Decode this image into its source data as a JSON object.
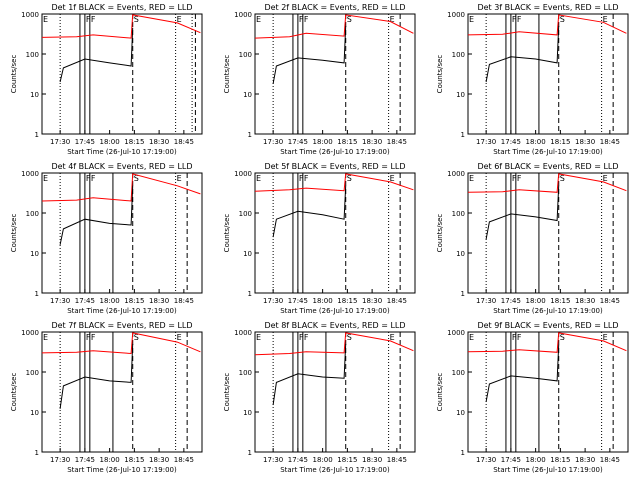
{
  "chart_data": {
    "type": "line",
    "layout": "3x3 grid",
    "ylabel": "Counts/sec",
    "xlabel": "Start Time (26-Jul-10 17:19:00)",
    "x_ticks": [
      "17:30",
      "17:45",
      "18:00",
      "18:15",
      "18:30",
      "18:45"
    ],
    "y_ticks": [
      "1",
      "10",
      "100",
      "1000"
    ],
    "y_scale": "log",
    "ylim": [
      1,
      1000
    ],
    "xlim": [
      "17:19",
      "18:56"
    ],
    "series_colors": {
      "events": "#000000",
      "lld": "#ff0000"
    },
    "marker_letters": {
      "E": "E",
      "F": "F",
      "S": "S"
    },
    "panels": [
      {
        "title": "Det 1f BLACK = Events, RED = LLD",
        "vlines_dotted": [
          "17:30",
          "18:40",
          "18:50"
        ],
        "vlines_solid": [
          "17:42",
          "17:45",
          "17:48"
        ],
        "vlines_dashed": [
          "18:14",
          "18:52"
        ],
        "labels": [
          {
            "t": "E",
            "at": "17:19"
          },
          {
            "t": "F",
            "at": "17:45"
          },
          {
            "t": "F",
            "at": "17:48"
          },
          {
            "t": "S",
            "at": "18:14"
          },
          {
            "t": "E",
            "at": "18:40"
          }
        ],
        "events": [
          {
            "x": "17:30",
            "y": 20
          },
          {
            "x": "17:32",
            "y": 45
          },
          {
            "x": "17:45",
            "y": 75
          },
          {
            "x": "18:00",
            "y": 60
          },
          {
            "x": "18:13",
            "y": 50
          },
          {
            "x": "18:14",
            "y": 450
          }
        ],
        "lld": [
          {
            "x": "17:19",
            "y": 260
          },
          {
            "x": "17:40",
            "y": 270
          },
          {
            "x": "17:50",
            "y": 300
          },
          {
            "x": "18:13",
            "y": 250
          },
          {
            "x": "18:14",
            "y": 950
          },
          {
            "x": "18:41",
            "y": 600
          },
          {
            "x": "18:55",
            "y": 340
          }
        ]
      },
      {
        "title": "Det 2f BLACK = Events, RED = LLD",
        "vlines_dotted": [
          "17:30",
          "18:40"
        ],
        "vlines_solid": [
          "17:42",
          "17:45",
          "17:48"
        ],
        "vlines_dashed": [
          "18:14",
          "18:47"
        ],
        "labels": [
          {
            "t": "E",
            "at": "17:19"
          },
          {
            "t": "F",
            "at": "17:45"
          },
          {
            "t": "F",
            "at": "17:48"
          },
          {
            "t": "S",
            "at": "18:14"
          },
          {
            "t": "E",
            "at": "18:40"
          }
        ],
        "events": [
          {
            "x": "17:30",
            "y": 18
          },
          {
            "x": "17:32",
            "y": 50
          },
          {
            "x": "17:45",
            "y": 80
          },
          {
            "x": "18:00",
            "y": 70
          },
          {
            "x": "18:13",
            "y": 60
          },
          {
            "x": "18:14",
            "y": 500
          }
        ],
        "lld": [
          {
            "x": "17:19",
            "y": 250
          },
          {
            "x": "17:40",
            "y": 270
          },
          {
            "x": "17:50",
            "y": 330
          },
          {
            "x": "18:13",
            "y": 280
          },
          {
            "x": "18:14",
            "y": 950
          },
          {
            "x": "18:41",
            "y": 650
          },
          {
            "x": "18:55",
            "y": 330
          }
        ]
      },
      {
        "title": "Det 3f BLACK = Events, RED = LLD",
        "vlines_dotted": [
          "17:30",
          "18:40"
        ],
        "vlines_solid": [
          "17:42",
          "17:45",
          "17:48",
          "18:02"
        ],
        "vlines_dashed": [
          "18:14",
          "18:47"
        ],
        "labels": [
          {
            "t": "E",
            "at": "17:19"
          },
          {
            "t": "F",
            "at": "17:45"
          },
          {
            "t": "F",
            "at": "17:48"
          },
          {
            "t": "S",
            "at": "18:14"
          },
          {
            "t": "E",
            "at": "18:40"
          }
        ],
        "events": [
          {
            "x": "17:30",
            "y": 20
          },
          {
            "x": "17:32",
            "y": 55
          },
          {
            "x": "17:45",
            "y": 85
          },
          {
            "x": "18:00",
            "y": 75
          },
          {
            "x": "18:13",
            "y": 60
          },
          {
            "x": "18:14",
            "y": 500
          }
        ],
        "lld": [
          {
            "x": "17:19",
            "y": 300
          },
          {
            "x": "17:40",
            "y": 310
          },
          {
            "x": "17:50",
            "y": 360
          },
          {
            "x": "18:13",
            "y": 300
          },
          {
            "x": "18:14",
            "y": 950
          },
          {
            "x": "18:41",
            "y": 620
          },
          {
            "x": "18:55",
            "y": 330
          }
        ]
      },
      {
        "title": "Det 4f BLACK = Events, RED = LLD",
        "vlines_dotted": [
          "17:30",
          "18:40"
        ],
        "vlines_solid": [
          "17:42",
          "17:45",
          "17:48",
          "18:02"
        ],
        "vlines_dashed": [
          "18:14",
          "18:47"
        ],
        "labels": [
          {
            "t": "E",
            "at": "17:19"
          },
          {
            "t": "F",
            "at": "17:45"
          },
          {
            "t": "F",
            "at": "17:48"
          },
          {
            "t": "S",
            "at": "18:14"
          },
          {
            "t": "E",
            "at": "18:40"
          }
        ],
        "events": [
          {
            "x": "17:30",
            "y": 16
          },
          {
            "x": "17:32",
            "y": 40
          },
          {
            "x": "17:45",
            "y": 70
          },
          {
            "x": "18:00",
            "y": 55
          },
          {
            "x": "18:13",
            "y": 50
          },
          {
            "x": "18:14",
            "y": 480
          }
        ],
        "lld": [
          {
            "x": "17:19",
            "y": 200
          },
          {
            "x": "17:40",
            "y": 210
          },
          {
            "x": "17:50",
            "y": 240
          },
          {
            "x": "18:13",
            "y": 200
          },
          {
            "x": "18:14",
            "y": 950
          },
          {
            "x": "18:41",
            "y": 480
          },
          {
            "x": "18:55",
            "y": 300
          }
        ]
      },
      {
        "title": "Det 5f BLACK = Events, RED = LLD",
        "vlines_dotted": [
          "17:30",
          "18:40"
        ],
        "vlines_solid": [
          "17:42",
          "17:45",
          "17:48"
        ],
        "vlines_dashed": [
          "18:14",
          "18:47"
        ],
        "labels": [
          {
            "t": "E",
            "at": "17:19"
          },
          {
            "t": "F",
            "at": "17:45"
          },
          {
            "t": "F",
            "at": "17:48"
          },
          {
            "t": "S",
            "at": "18:14"
          },
          {
            "t": "E",
            "at": "18:40"
          }
        ],
        "events": [
          {
            "x": "17:30",
            "y": 25
          },
          {
            "x": "17:32",
            "y": 70
          },
          {
            "x": "17:45",
            "y": 110
          },
          {
            "x": "18:00",
            "y": 90
          },
          {
            "x": "18:13",
            "y": 70
          },
          {
            "x": "18:14",
            "y": 480
          }
        ],
        "lld": [
          {
            "x": "17:19",
            "y": 350
          },
          {
            "x": "17:40",
            "y": 380
          },
          {
            "x": "17:50",
            "y": 420
          },
          {
            "x": "18:13",
            "y": 360
          },
          {
            "x": "18:14",
            "y": 950
          },
          {
            "x": "18:41",
            "y": 600
          },
          {
            "x": "18:55",
            "y": 380
          }
        ]
      },
      {
        "title": "Det 6f BLACK = Events, RED = LLD",
        "vlines_dotted": [
          "17:30",
          "18:40"
        ],
        "vlines_solid": [
          "17:42",
          "17:45",
          "17:48",
          "18:02"
        ],
        "vlines_dashed": [
          "18:14",
          "18:47"
        ],
        "labels": [
          {
            "t": "E",
            "at": "17:19"
          },
          {
            "t": "F",
            "at": "17:45"
          },
          {
            "t": "F",
            "at": "17:48"
          },
          {
            "t": "S",
            "at": "18:14"
          },
          {
            "t": "E",
            "at": "18:40"
          }
        ],
        "events": [
          {
            "x": "17:30",
            "y": 22
          },
          {
            "x": "17:32",
            "y": 60
          },
          {
            "x": "17:45",
            "y": 95
          },
          {
            "x": "18:00",
            "y": 80
          },
          {
            "x": "18:13",
            "y": 65
          },
          {
            "x": "18:14",
            "y": 480
          }
        ],
        "lld": [
          {
            "x": "17:19",
            "y": 330
          },
          {
            "x": "17:40",
            "y": 340
          },
          {
            "x": "17:50",
            "y": 380
          },
          {
            "x": "18:13",
            "y": 330
          },
          {
            "x": "18:14",
            "y": 950
          },
          {
            "x": "18:41",
            "y": 600
          },
          {
            "x": "18:55",
            "y": 360
          }
        ]
      },
      {
        "title": "Det 7f BLACK = Events, RED = LLD",
        "vlines_dotted": [
          "17:30",
          "18:40"
        ],
        "vlines_solid": [
          "17:42",
          "17:45",
          "17:48",
          "18:02"
        ],
        "vlines_dashed": [
          "18:14",
          "18:47"
        ],
        "labels": [
          {
            "t": "E",
            "at": "17:19"
          },
          {
            "t": "F",
            "at": "17:45"
          },
          {
            "t": "F",
            "at": "17:48"
          },
          {
            "t": "S",
            "at": "18:14"
          },
          {
            "t": "E",
            "at": "18:40"
          }
        ],
        "events": [
          {
            "x": "17:30",
            "y": 12
          },
          {
            "x": "17:32",
            "y": 45
          },
          {
            "x": "17:45",
            "y": 75
          },
          {
            "x": "18:00",
            "y": 60
          },
          {
            "x": "18:13",
            "y": 55
          },
          {
            "x": "18:14",
            "y": 500
          }
        ],
        "lld": [
          {
            "x": "17:19",
            "y": 300
          },
          {
            "x": "17:40",
            "y": 310
          },
          {
            "x": "17:50",
            "y": 340
          },
          {
            "x": "18:13",
            "y": 290
          },
          {
            "x": "18:14",
            "y": 950
          },
          {
            "x": "18:41",
            "y": 560
          },
          {
            "x": "18:55",
            "y": 320
          }
        ]
      },
      {
        "title": "Det 8f BLACK = Events, RED = LLD",
        "vlines_dotted": [
          "17:30",
          "18:40"
        ],
        "vlines_solid": [
          "17:42",
          "17:45",
          "17:48",
          "18:02"
        ],
        "vlines_dashed": [
          "18:14",
          "18:47"
        ],
        "labels": [
          {
            "t": "E",
            "at": "17:19"
          },
          {
            "t": "F",
            "at": "17:45"
          },
          {
            "t": "F",
            "at": "17:48"
          },
          {
            "t": "S",
            "at": "18:14"
          },
          {
            "t": "E",
            "at": "18:40"
          }
        ],
        "events": [
          {
            "x": "17:30",
            "y": 15
          },
          {
            "x": "17:32",
            "y": 55
          },
          {
            "x": "17:45",
            "y": 90
          },
          {
            "x": "18:00",
            "y": 75
          },
          {
            "x": "18:13",
            "y": 70
          },
          {
            "x": "18:14",
            "y": 500
          }
        ],
        "lld": [
          {
            "x": "17:19",
            "y": 270
          },
          {
            "x": "17:40",
            "y": 290
          },
          {
            "x": "17:50",
            "y": 320
          },
          {
            "x": "18:13",
            "y": 300
          },
          {
            "x": "18:14",
            "y": 950
          },
          {
            "x": "18:41",
            "y": 600
          },
          {
            "x": "18:55",
            "y": 340
          }
        ]
      },
      {
        "title": "Det 9f BLACK = Events, RED = LLD",
        "vlines_dotted": [
          "17:30",
          "18:40"
        ],
        "vlines_solid": [
          "17:42",
          "17:45",
          "17:48",
          "18:02"
        ],
        "vlines_dashed": [
          "18:14",
          "18:47"
        ],
        "labels": [
          {
            "t": "E",
            "at": "17:19"
          },
          {
            "t": "F",
            "at": "17:45"
          },
          {
            "t": "F",
            "at": "17:48"
          },
          {
            "t": "S",
            "at": "18:14"
          },
          {
            "t": "E",
            "at": "18:40"
          }
        ],
        "events": [
          {
            "x": "17:30",
            "y": 18
          },
          {
            "x": "17:32",
            "y": 50
          },
          {
            "x": "17:45",
            "y": 80
          },
          {
            "x": "18:00",
            "y": 70
          },
          {
            "x": "18:13",
            "y": 60
          },
          {
            "x": "18:14",
            "y": 480
          }
        ],
        "lld": [
          {
            "x": "17:19",
            "y": 320
          },
          {
            "x": "17:40",
            "y": 330
          },
          {
            "x": "17:50",
            "y": 360
          },
          {
            "x": "18:13",
            "y": 310
          },
          {
            "x": "18:14",
            "y": 950
          },
          {
            "x": "18:41",
            "y": 600
          },
          {
            "x": "18:55",
            "y": 340
          }
        ]
      }
    ]
  }
}
